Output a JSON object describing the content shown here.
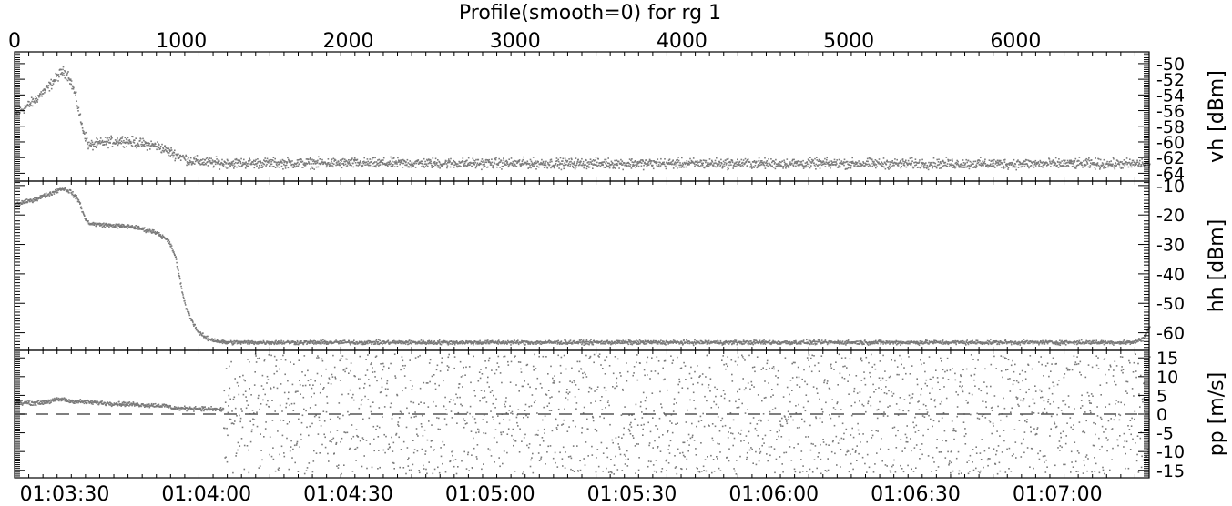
{
  "title": "Profile(smooth=0) for rg 1",
  "colors": {
    "data": "#7a7a7a",
    "axis": "#000000",
    "background": "#ffffff"
  },
  "chart_data": {
    "type": "scatter",
    "top_axis": {
      "label": "",
      "range": [
        0,
        6800
      ],
      "ticks": [
        "0",
        "1000",
        "2000",
        "3000",
        "4000",
        "5000",
        "6000"
      ],
      "tick_values": [
        0,
        1000,
        2000,
        3000,
        4000,
        5000,
        6000
      ]
    },
    "bottom_axis": {
      "label": "",
      "ticks": [
        "01:03:30",
        "01:04:00",
        "01:04:30",
        "01:05:00",
        "01:05:30",
        "01:06:00",
        "01:06:30",
        "01:07:00"
      ],
      "tick_values": [
        300,
        1150,
        2000,
        2850,
        3700,
        4550,
        5400,
        6250
      ]
    },
    "panels": [
      {
        "id": "vh",
        "ylabel": "vh [dBm]",
        "ylim": [
          -65,
          -48.5
        ],
        "ticks": [
          "-50",
          "-52",
          "-54",
          "-56",
          "-58",
          "-60",
          "-62",
          "-64"
        ],
        "tick_values": [
          -50,
          -52,
          -54,
          -56,
          -58,
          -60,
          -62,
          -64
        ],
        "profile": [
          [
            0,
            -56.5
          ],
          [
            100,
            -55
          ],
          [
            200,
            -53
          ],
          [
            280,
            -51
          ],
          [
            320,
            -51.5
          ],
          [
            360,
            -54
          ],
          [
            400,
            -58
          ],
          [
            440,
            -60.5
          ],
          [
            550,
            -60
          ],
          [
            650,
            -59.8
          ],
          [
            750,
            -60.2
          ],
          [
            850,
            -60.5
          ],
          [
            950,
            -61.5
          ],
          [
            1050,
            -62.4
          ],
          [
            1150,
            -62.6
          ],
          [
            1250,
            -62.7
          ],
          [
            6800,
            -62.8
          ]
        ],
        "noise": 0.45,
        "dashed_zero": false
      },
      {
        "id": "hh",
        "ylabel": "hh [dBm]",
        "ylim": [
          -66,
          -8.5
        ],
        "ticks": [
          "-10",
          "-20",
          "-30",
          "-40",
          "-50",
          "-60"
        ],
        "tick_values": [
          -10,
          -20,
          -30,
          -40,
          -50,
          -60
        ],
        "profile": [
          [
            0,
            -16.5
          ],
          [
            100,
            -15
          ],
          [
            200,
            -13
          ],
          [
            280,
            -11
          ],
          [
            330,
            -12
          ],
          [
            380,
            -15
          ],
          [
            420,
            -21.5
          ],
          [
            450,
            -23
          ],
          [
            550,
            -23.5
          ],
          [
            700,
            -24
          ],
          [
            850,
            -26
          ],
          [
            920,
            -29
          ],
          [
            960,
            -34
          ],
          [
            990,
            -43
          ],
          [
            1020,
            -51
          ],
          [
            1060,
            -56
          ],
          [
            1100,
            -60
          ],
          [
            1150,
            -62
          ],
          [
            1250,
            -63.3
          ],
          [
            6700,
            -63.3
          ],
          [
            6760,
            -62
          ],
          [
            6800,
            -58
          ]
        ],
        "noise": 0.5,
        "dashed_zero": false
      },
      {
        "id": "pp",
        "ylabel": "pp [m/s]",
        "ylim": [
          -17,
          17
        ],
        "ticks": [
          "15",
          "10",
          "5",
          "0",
          "-5",
          "-10",
          "-15"
        ],
        "tick_values": [
          15,
          10,
          5,
          0,
          -5,
          -10,
          -15
        ],
        "profile": [
          [
            0,
            3
          ],
          [
            150,
            3
          ],
          [
            280,
            4
          ],
          [
            320,
            3.5
          ],
          [
            500,
            3
          ],
          [
            700,
            2.6
          ],
          [
            900,
            2.2
          ],
          [
            960,
            1.5
          ],
          [
            1100,
            1.5
          ],
          [
            1220,
            1.2
          ],
          [
            6800,
            1
          ]
        ],
        "noise": 0.4,
        "scatter_start": 1250,
        "scatter_range": [
          -16,
          16
        ],
        "dashed_zero": true
      }
    ]
  }
}
